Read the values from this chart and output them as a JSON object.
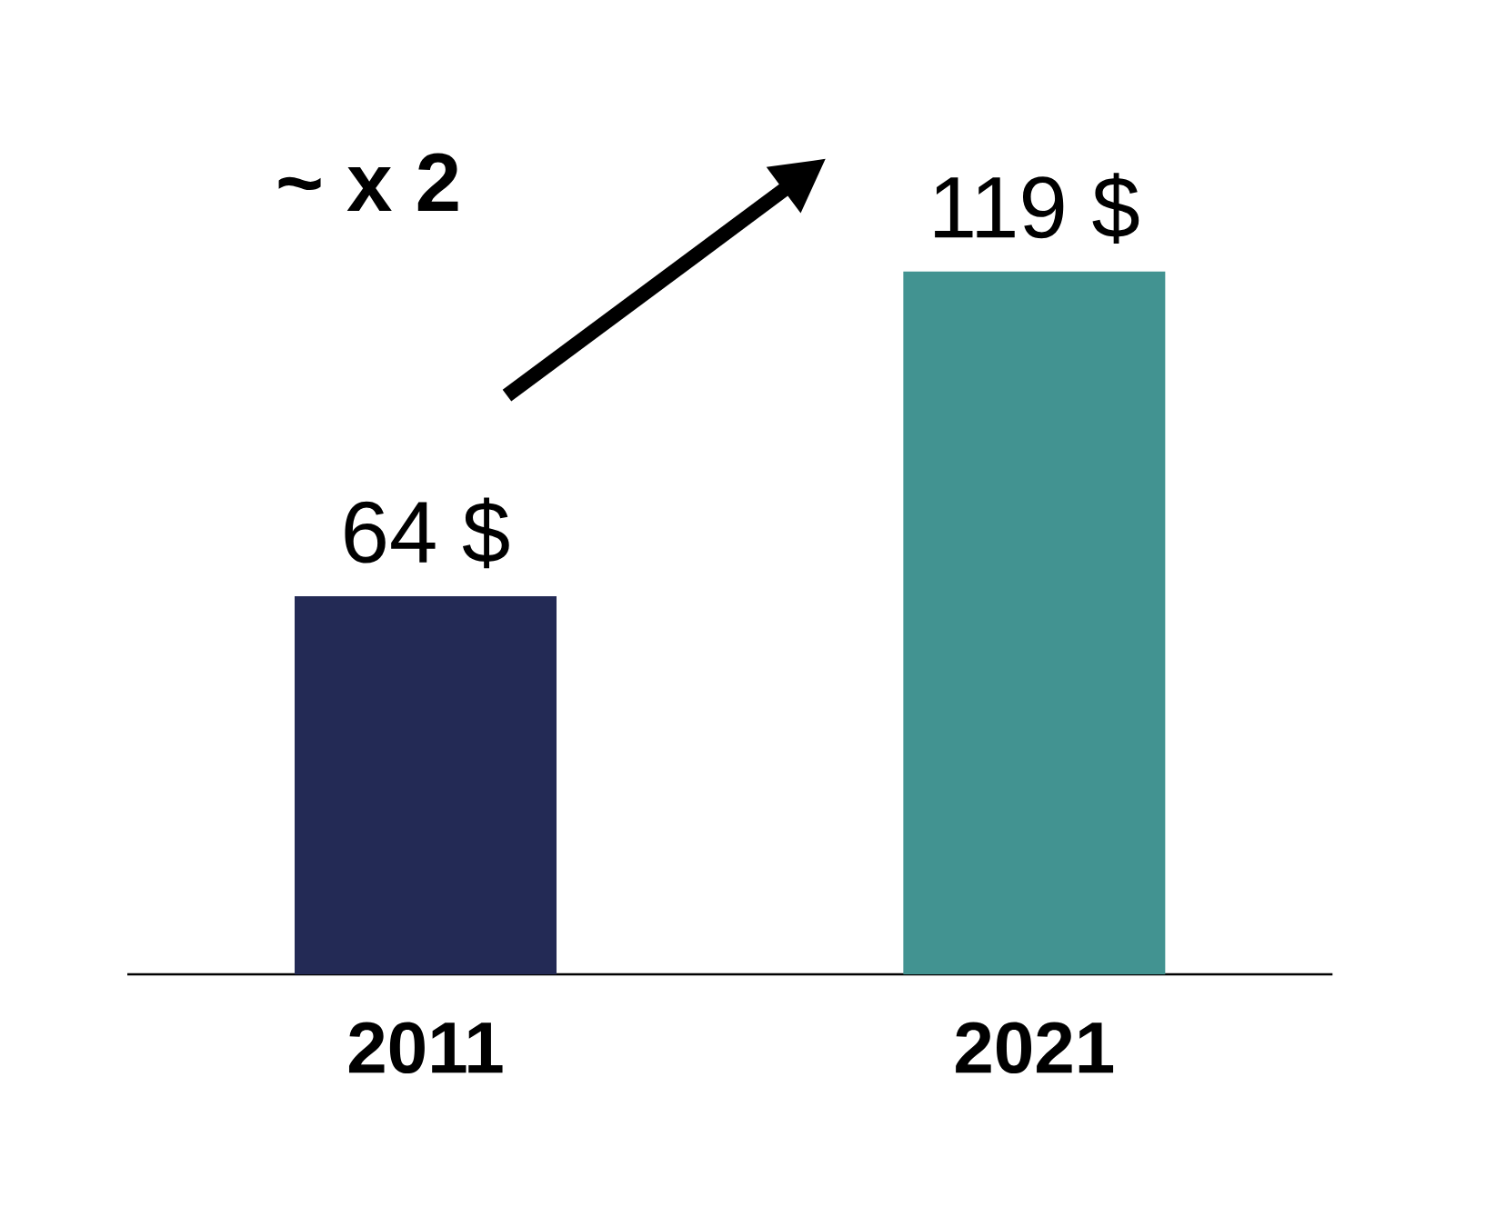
{
  "chart_data": {
    "type": "bar",
    "categories": [
      "2011",
      "2021"
    ],
    "values": [
      64,
      119
    ],
    "colors": [
      "#232a55",
      "#429391"
    ],
    "value_labels": [
      "64 $",
      "119 $"
    ],
    "annotations": [
      "~ x 2"
    ]
  }
}
